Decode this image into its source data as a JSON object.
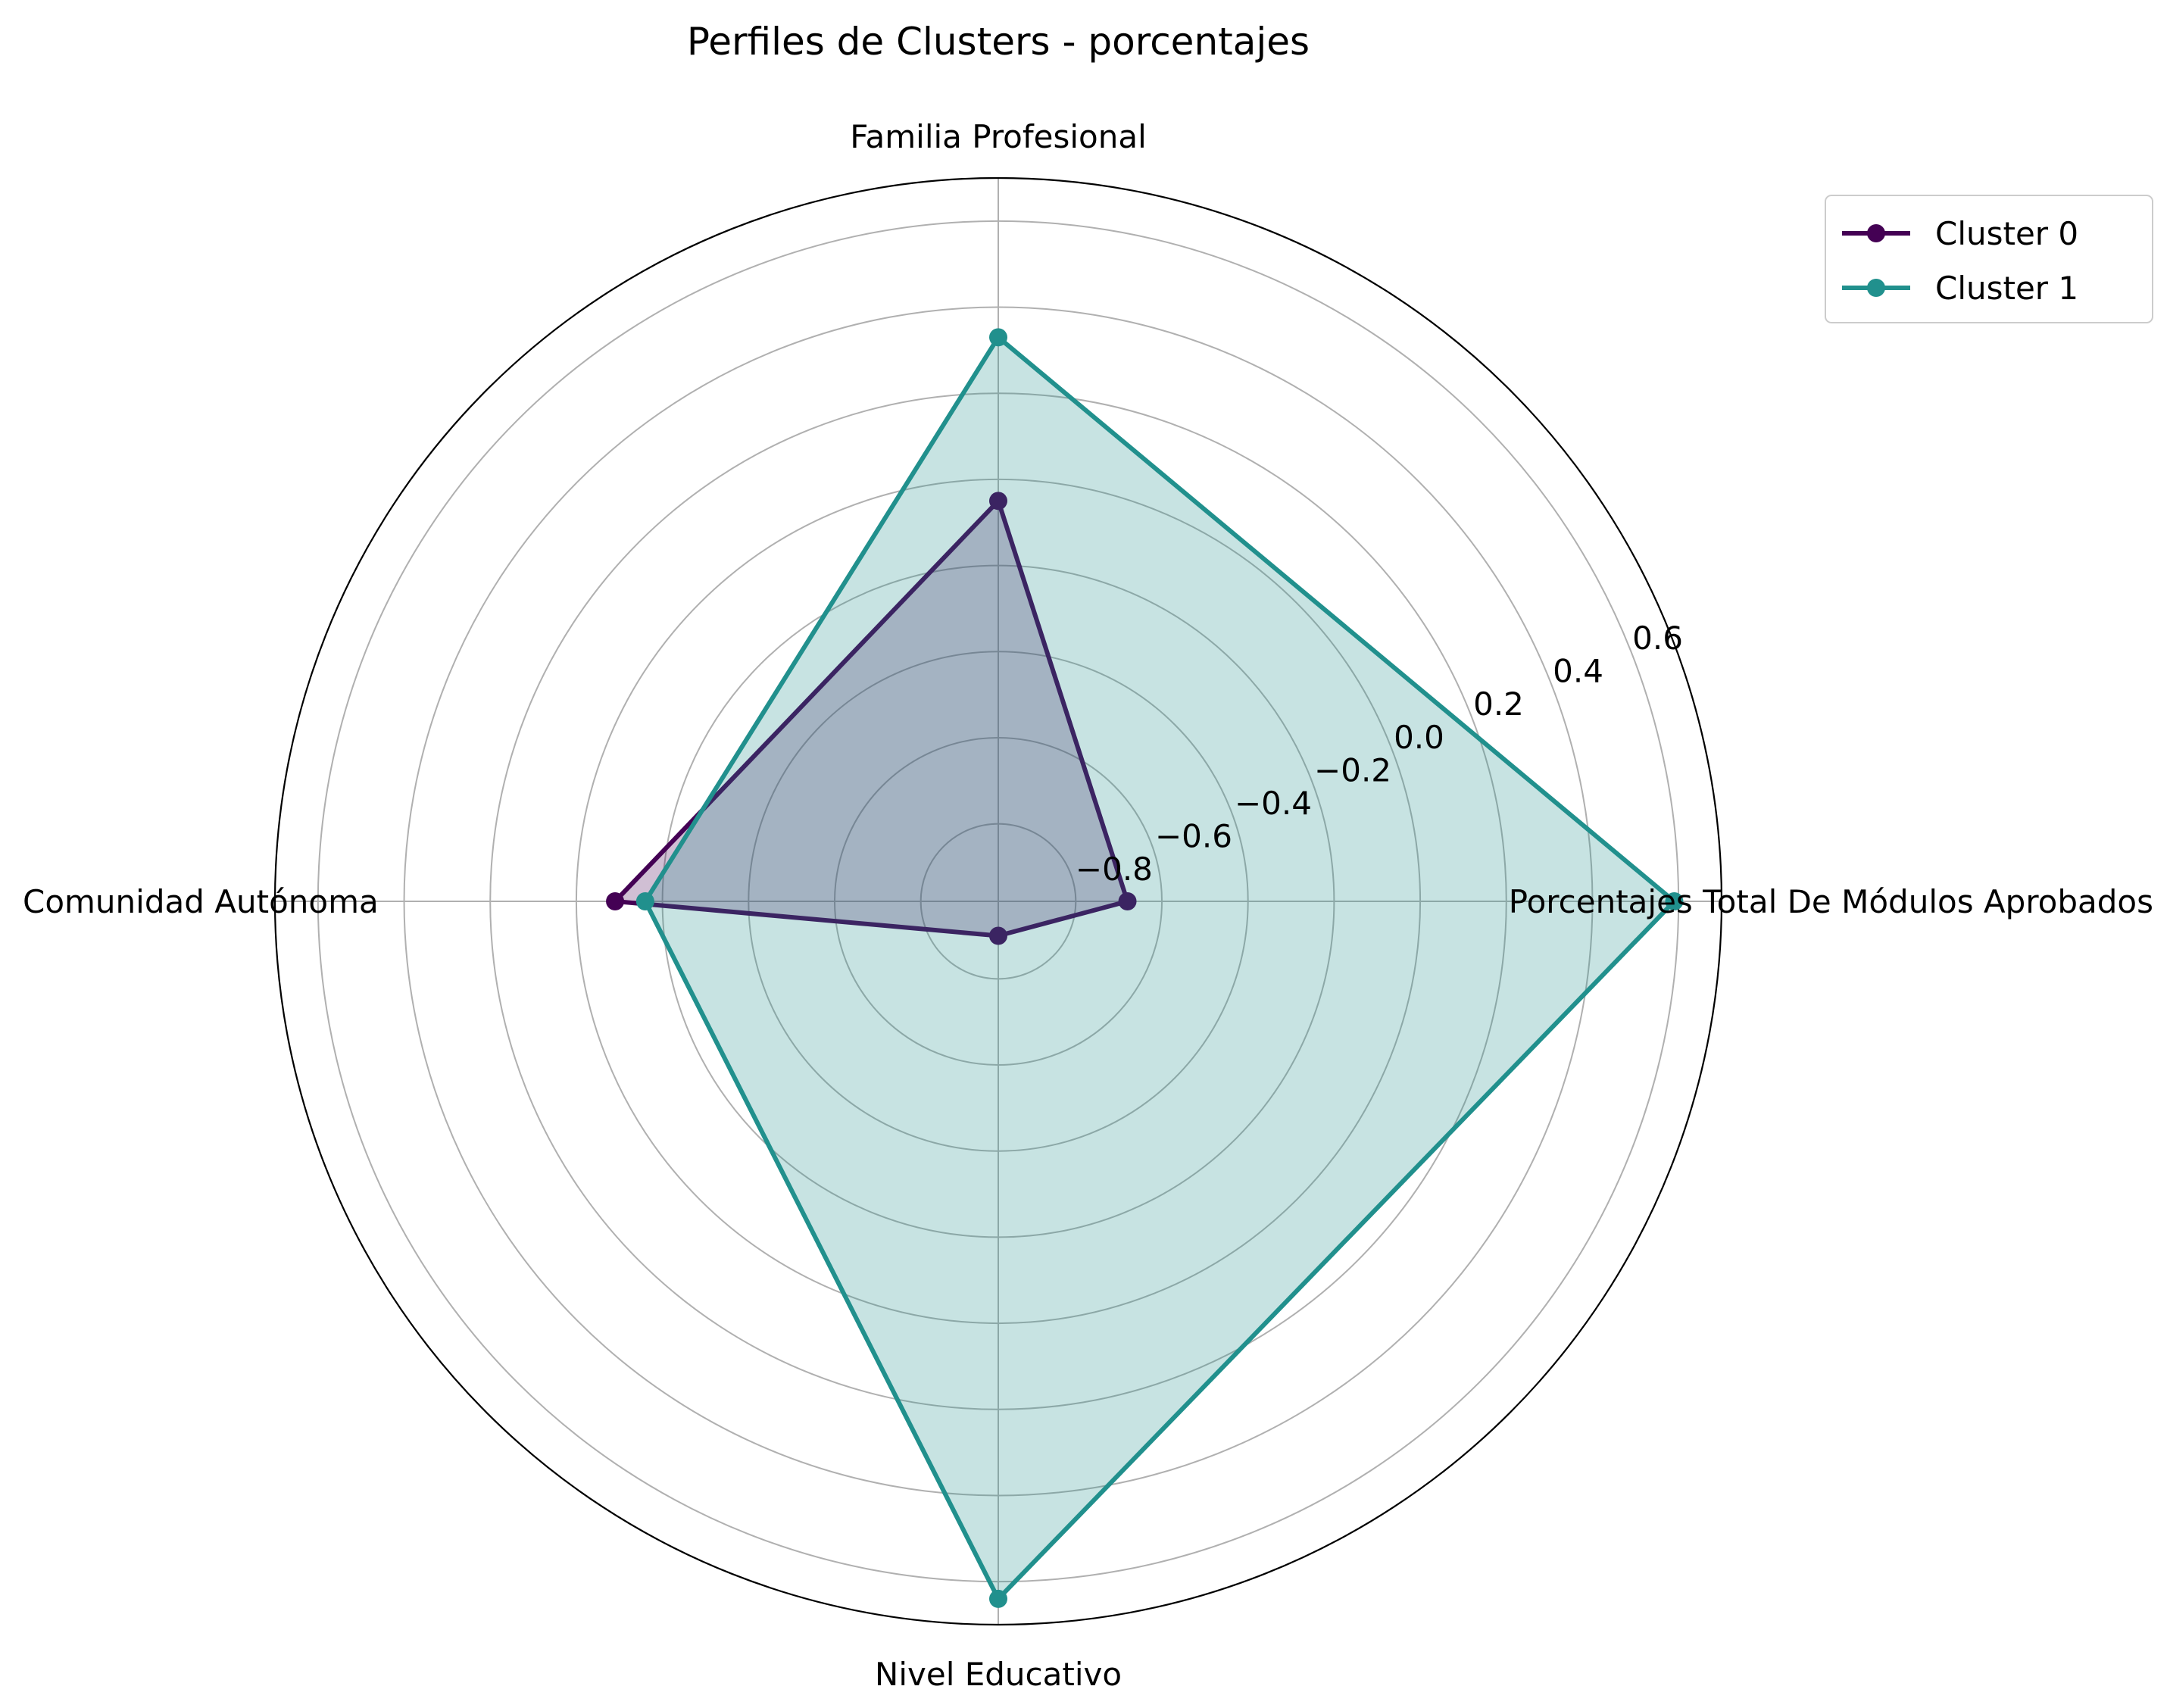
{
  "chart_data": {
    "type": "radar",
    "title": "Perfiles de Clusters - porcentajes",
    "axes": [
      "Porcentajes Total De Módulos Aprobados",
      "Familia Profesional",
      "Comunidad Autónoma",
      "Nivel Educativo"
    ],
    "radial_ticks": [
      -0.8,
      -0.6,
      -0.4,
      -0.2,
      0.0,
      0.2,
      0.4,
      0.6
    ],
    "radial_tick_labels": [
      "−0.8",
      "−0.6",
      "−0.4",
      "−0.2",
      "0.0",
      "0.2",
      "0.4",
      "0.6"
    ],
    "rlim": [
      -0.98,
      0.7
    ],
    "grid": true,
    "legend_position": "top-right",
    "series": [
      {
        "name": "Cluster 0",
        "values": [
          -0.68,
          -0.05,
          -0.09,
          -0.9
        ],
        "color": "#440154",
        "fill_opacity": 0.25
      },
      {
        "name": "Cluster 1",
        "values": [
          0.59,
          0.33,
          -0.16,
          0.64
        ],
        "color": "#21908d",
        "fill_opacity": 0.25
      }
    ]
  }
}
